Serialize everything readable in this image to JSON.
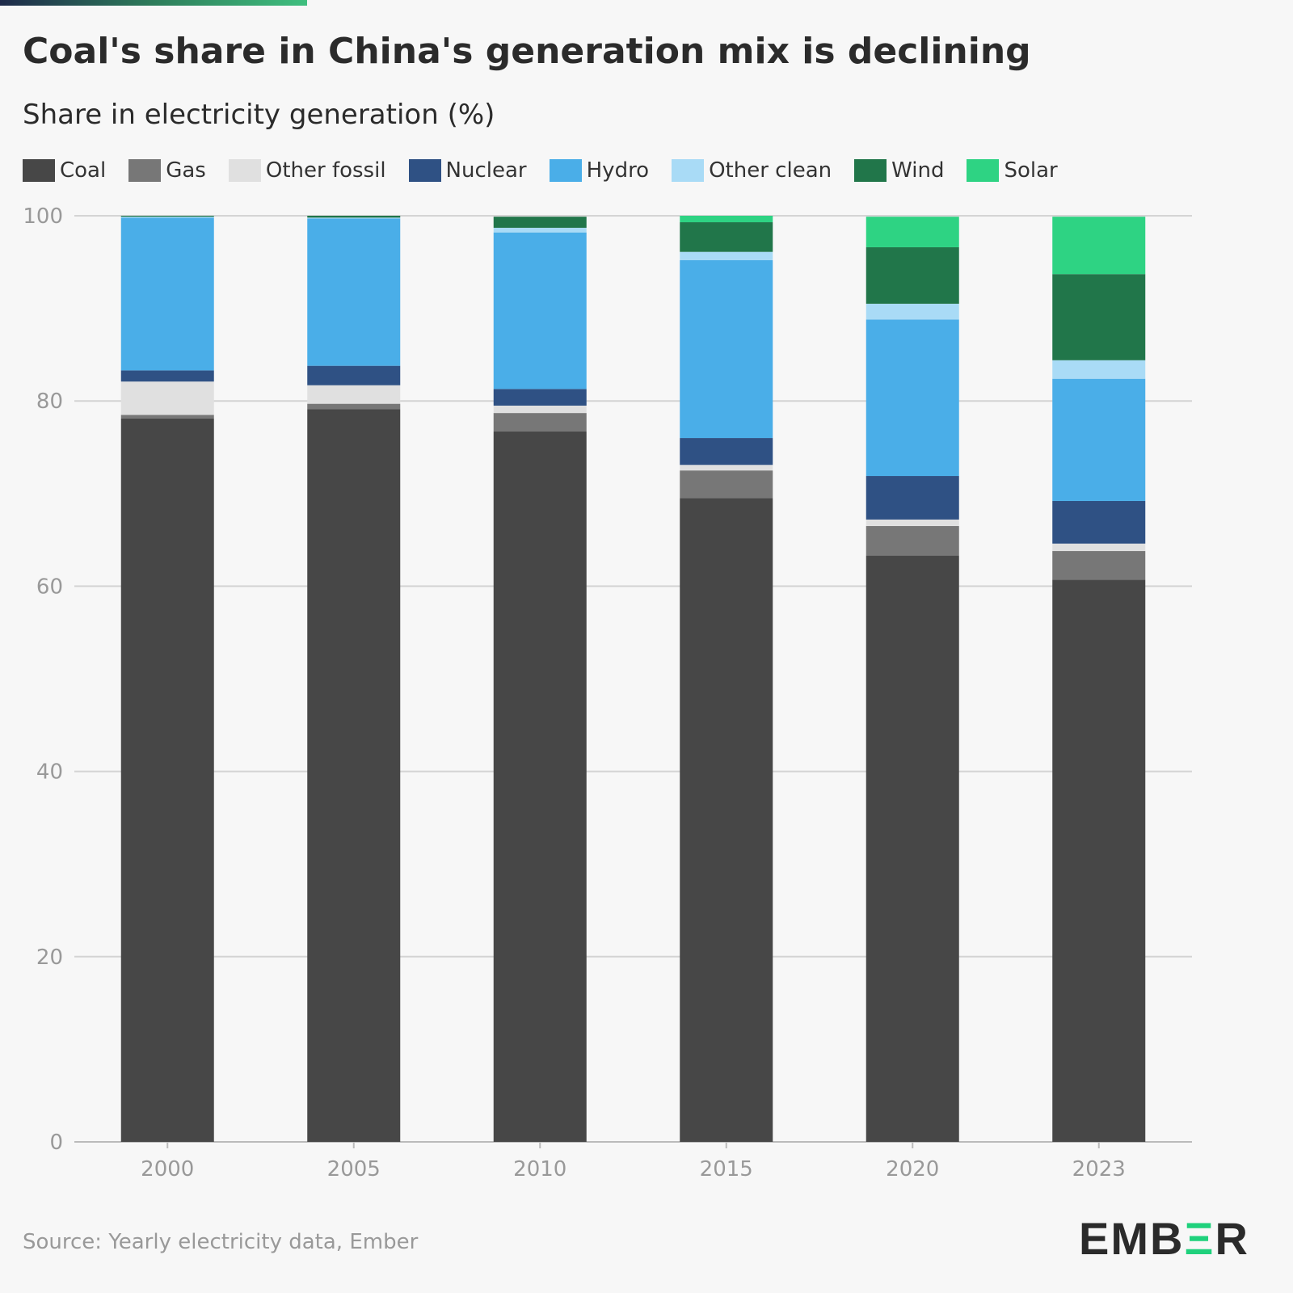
{
  "title": "Coal's share in China's generation mix is declining",
  "subtitle": "Share in electricity generation (%)",
  "source": "Source: Yearly electricity data, Ember",
  "logo": "EMBER",
  "chart_data": {
    "type": "bar",
    "stacked": true,
    "title": "Coal's share in China's generation mix is declining",
    "ylabel": "Share in electricity generation (%)",
    "xlabel": "",
    "ylim": [
      0,
      100
    ],
    "yticks": [
      "0",
      "20",
      "40",
      "60",
      "80",
      "100"
    ],
    "grid": true,
    "legend_position": "top",
    "categories": [
      "2000",
      "2005",
      "2010",
      "2015",
      "2020",
      "2023"
    ],
    "series": [
      {
        "name": "Coal",
        "color": "#474747",
        "values": [
          78.1,
          79.1,
          76.7,
          69.5,
          63.3,
          60.7
        ]
      },
      {
        "name": "Gas",
        "color": "#777777",
        "values": [
          0.4,
          0.6,
          2.0,
          3.0,
          3.2,
          3.1
        ]
      },
      {
        "name": "Other fossil",
        "color": "#e0e0e0",
        "values": [
          3.6,
          2.0,
          0.8,
          0.6,
          0.7,
          0.8
        ]
      },
      {
        "name": "Nuclear",
        "color": "#2f5184",
        "values": [
          1.2,
          2.1,
          1.8,
          2.9,
          4.7,
          4.6
        ]
      },
      {
        "name": "Hydro",
        "color": "#4aaee8",
        "values": [
          16.5,
          15.9,
          16.9,
          19.2,
          16.9,
          13.2
        ]
      },
      {
        "name": "Other clean",
        "color": "#a9dbf6",
        "values": [
          0.1,
          0.1,
          0.5,
          0.9,
          1.7,
          2.0
        ]
      },
      {
        "name": "Wind",
        "color": "#21764a",
        "values": [
          0.1,
          0.2,
          1.2,
          3.2,
          6.1,
          9.3
        ]
      },
      {
        "name": "Solar",
        "color": "#2ed383",
        "values": [
          0.0,
          0.0,
          0.0,
          0.7,
          3.3,
          6.2
        ]
      }
    ]
  }
}
